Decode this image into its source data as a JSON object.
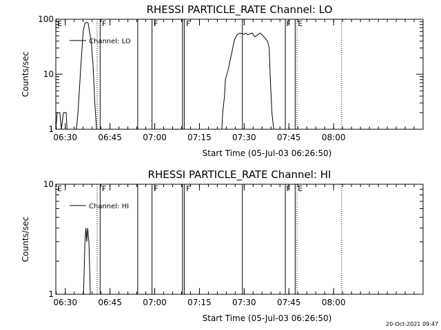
{
  "timestamp": "20-Oct-2021 09:47",
  "chart_data": [
    {
      "type": "line",
      "title": "RHESSI PARTICLE_RATE Channel: LO",
      "xlabel": "Start Time (05-Jul-03 06:26:50)",
      "ylabel": "Counts/sec",
      "xlim": [
        6.4472,
        8.5
      ],
      "ylim": [
        1,
        100
      ],
      "yscale": "log",
      "xticks": [
        6.5,
        6.75,
        7.0,
        7.25,
        7.5,
        7.75,
        8.0
      ],
      "xtick_labels": [
        "06:30",
        "06:45",
        "07:00",
        "07:15",
        "07:30",
        "07:45",
        "08:00"
      ],
      "yticks": [
        1,
        10,
        100
      ],
      "ytick_labels": [
        "1",
        "10",
        "100"
      ],
      "legend": {
        "label": "Channel: LO",
        "position": "top-left"
      },
      "series": [
        {
          "name": "Channel: LO",
          "segments": [
            [
              [
                6.4472,
                1
              ],
              [
                6.455,
                2
              ],
              [
                6.47,
                2
              ],
              [
                6.478,
                1
              ],
              [
                6.49,
                2
              ],
              [
                6.505,
                2
              ],
              [
                6.51,
                1
              ]
            ],
            [
              [
                6.562,
                1
              ],
              [
                6.57,
                1.8
              ],
              [
                6.58,
                6
              ],
              [
                6.59,
                20
              ],
              [
                6.6,
                60
              ],
              [
                6.61,
                85
              ],
              [
                6.62,
                88
              ],
              [
                6.628,
                85
              ],
              [
                6.635,
                60
              ],
              [
                6.645,
                40
              ],
              [
                6.655,
                15
              ],
              [
                6.665,
                3
              ],
              [
                6.675,
                1
              ]
            ],
            [
              [
                7.375,
                1
              ],
              [
                7.38,
                2
              ],
              [
                7.39,
                4
              ],
              [
                7.395,
                8
              ],
              [
                7.41,
                12
              ],
              [
                7.42,
                17
              ],
              [
                7.43,
                24
              ],
              [
                7.445,
                42
              ],
              [
                7.46,
                52
              ],
              [
                7.475,
                56
              ],
              [
                7.49,
                55
              ],
              [
                7.5,
                53
              ],
              [
                7.51,
                56
              ],
              [
                7.52,
                52
              ],
              [
                7.53,
                54
              ],
              [
                7.545,
                56
              ],
              [
                7.56,
                48
              ],
              [
                7.575,
                52
              ],
              [
                7.59,
                56
              ],
              [
                7.605,
                50
              ],
              [
                7.62,
                44
              ],
              [
                7.63,
                40
              ],
              [
                7.64,
                30
              ],
              [
                7.645,
                10
              ],
              [
                7.655,
                2
              ],
              [
                7.665,
                1
              ]
            ]
          ]
        }
      ],
      "solid_vlines": [
        6.695,
        6.905,
        6.985,
        7.155,
        7.165,
        7.49,
        7.73,
        7.785
      ],
      "dotted_vlines": [
        6.678,
        7.795,
        8.045
      ],
      "markers": [
        {
          "text": "E",
          "x": 6.455
        },
        {
          "text": "F",
          "x": 6.705
        },
        {
          "text": "F",
          "x": 6.995
        },
        {
          "text": "F",
          "x": 7.175
        },
        {
          "text": "F",
          "x": 7.735
        },
        {
          "text": "E",
          "x": 7.8
        }
      ]
    },
    {
      "type": "line",
      "title": "RHESSI PARTICLE_RATE Channel: HI",
      "xlabel": "Start Time (05-Jul-03 06:26:50)",
      "ylabel": "Counts/sec",
      "xlim": [
        6.4472,
        8.5
      ],
      "ylim": [
        1,
        10
      ],
      "yscale": "log",
      "xticks": [
        6.5,
        6.75,
        7.0,
        7.25,
        7.5,
        7.75,
        8.0
      ],
      "xtick_labels": [
        "06:30",
        "06:45",
        "07:00",
        "07:15",
        "07:30",
        "07:45",
        "08:00"
      ],
      "yticks": [
        1,
        10
      ],
      "ytick_labels": [
        "1",
        "10"
      ],
      "legend": {
        "label": "Channel: HI",
        "position": "top-left"
      },
      "series": [
        {
          "name": "Channel: HI",
          "segments": [
            [
              [
                6.602,
                1
              ],
              [
                6.61,
                3
              ],
              [
                6.615,
                4
              ],
              [
                6.62,
                3
              ],
              [
                6.625,
                4
              ],
              [
                6.632,
                3
              ],
              [
                6.64,
                1
              ]
            ]
          ]
        }
      ],
      "solid_vlines": [
        6.695,
        6.905,
        6.985,
        7.155,
        7.165,
        7.49,
        7.73,
        7.785
      ],
      "dotted_vlines": [
        6.678,
        7.795,
        8.045
      ],
      "markers": [
        {
          "text": "E",
          "x": 6.455
        },
        {
          "text": "F",
          "x": 6.705
        },
        {
          "text": "F",
          "x": 6.995
        },
        {
          "text": "F",
          "x": 7.175
        },
        {
          "text": "F",
          "x": 7.735
        },
        {
          "text": "E",
          "x": 7.8
        }
      ]
    }
  ]
}
